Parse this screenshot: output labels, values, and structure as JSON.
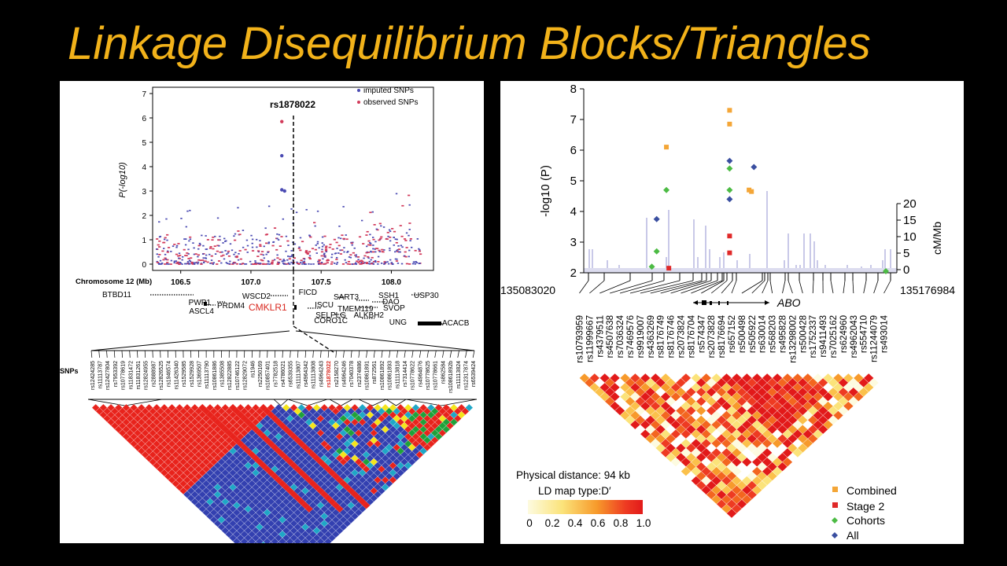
{
  "slide": {
    "title": "Linkage Disequilibrium Blocks/Triangles"
  },
  "colors": {
    "title": "#f2b21a",
    "imputed": "#4b4bb3",
    "observed": "#d23a5a",
    "ld_red": "#e8231c",
    "ld_blue": "#3340b0",
    "ld_teal": "#1fa7c7",
    "ld_green": "#1ea23a",
    "ld_yellow": "#f5e51a",
    "combined": "#f4a637",
    "stage2": "#e02929",
    "cohorts": "#4cbb44",
    "all": "#3a4fa0"
  },
  "left": {
    "ylabel": "P(-log10)",
    "yticks": [
      "0",
      "1",
      "2",
      "3",
      "4",
      "5",
      "6",
      "7"
    ],
    "ylim": [
      0,
      7
    ],
    "xlabel": "Chromosome 12 (Mb)",
    "xticks": [
      "106.5",
      "107.0",
      "107.5",
      "108.0"
    ],
    "xlim": [
      106.3,
      108.3
    ],
    "legend": [
      "imputed SNPs",
      "observed SNPs"
    ],
    "lead_snp": "rs1878022",
    "lead_points": [
      {
        "x": 107.22,
        "y": 5.85,
        "kind": "observed"
      },
      {
        "x": 107.22,
        "y": 4.45,
        "kind": "imputed"
      },
      {
        "x": 107.22,
        "y": 3.05,
        "kind": "imputed"
      },
      {
        "x": 107.24,
        "y": 3.0,
        "kind": "imputed"
      }
    ],
    "genes": [
      "BTBD11",
      "PWP1",
      "PRDM4",
      "ASCL4",
      "WSCD2",
      "CMKLR1",
      "FICD",
      "SART3",
      "ISCU",
      "TMEM119",
      "SELPLG",
      "CORO1C",
      "SSH1",
      "DAO",
      "SVOP",
      "ALKBH2",
      "UNG",
      "USP30",
      "ACACB"
    ],
    "highlight_gene": "CMKLR1",
    "snps_label": "SNPs",
    "snps": [
      "rs12424285",
      "rs11113787",
      "rs12427804",
      "rs7953392",
      "rs10778619",
      "rs11831472",
      "rs11831261",
      "rs12824955",
      "rs2888987",
      "rs12826525",
      "rs1946574",
      "rs11426340",
      "rs1529585",
      "rs1529928",
      "rs1369507",
      "rs11113790",
      "rs10861886",
      "rs1385508",
      "rs12822885",
      "rs10746122",
      "rs12829072",
      "rs1946",
      "rs2250169",
      "rs10857401",
      "rs7782518",
      "rs4786021",
      "rs6539355",
      "rs11113807",
      "rs4964342",
      "rs11113808",
      "rs4964243",
      "rs1878022",
      "rs2158270",
      "rs4964246",
      "rs7040378",
      "rs2374886",
      "rs10861891",
      "rs872561",
      "rs10861892",
      "rs10861893",
      "rs11113818",
      "rs7314414",
      "rs10778622",
      "rs4964876",
      "rs10778625",
      "rs10778661",
      "rs862584",
      "rs10861892b",
      "rs11113824",
      "rs12317874",
      "rs6539424"
    ],
    "highlight_snp": "rs1878022"
  },
  "right": {
    "ylabel": "-log10 (P)",
    "yticks": [
      "2",
      "3",
      "4",
      "5",
      "6",
      "7",
      "8"
    ],
    "ylim": [
      2,
      8
    ],
    "y2label": "cM/Mb",
    "y2ticks": [
      "0",
      "5",
      "10",
      "15",
      "20"
    ],
    "xstart": "135083020",
    "xend": "135176984",
    "gene": "ABO",
    "snps": [
      "rs10793959",
      "rs11999667",
      "rs4379511",
      "rs4507638",
      "rs7036324",
      "rs7469576",
      "rs9919007",
      "rs4363269",
      "rs8176749",
      "rs8176746",
      "rs2073824",
      "rs8176704",
      "rs574347",
      "rs2073828",
      "rs8176694",
      "rs657152",
      "rs500498",
      "rs505922",
      "rs630014",
      "rs568203",
      "rs495828",
      "rs13298002",
      "rs500428",
      "rs1752337",
      "rs9411493",
      "rs7025162",
      "rs624960",
      "rs4962043",
      "rs554710",
      "rs11244079",
      "rs493014"
    ],
    "points": [
      {
        "x": 0.3,
        "y": 7.3,
        "series": "Combined"
      },
      {
        "x": 0.3,
        "y": 6.85,
        "series": "Combined"
      },
      {
        "x": 0.17,
        "y": 6.1,
        "series": "Combined"
      },
      {
        "x": 0.34,
        "y": 4.7,
        "series": "Combined"
      },
      {
        "x": 0.345,
        "y": 4.65,
        "series": "Combined"
      },
      {
        "x": 0.3,
        "y": 3.2,
        "series": "Stage 2"
      },
      {
        "x": 0.3,
        "y": 2.65,
        "series": "Stage 2"
      },
      {
        "x": 0.175,
        "y": 2.15,
        "series": "Stage 2"
      },
      {
        "x": 0.17,
        "y": 4.7,
        "series": "Cohorts"
      },
      {
        "x": 0.3,
        "y": 5.4,
        "series": "Cohorts"
      },
      {
        "x": 0.3,
        "y": 4.7,
        "series": "Cohorts"
      },
      {
        "x": 0.15,
        "y": 2.7,
        "series": "Cohorts"
      },
      {
        "x": 0.14,
        "y": 2.2,
        "series": "Cohorts"
      },
      {
        "x": 0.95,
        "y": 2.05,
        "series": "Cohorts"
      },
      {
        "x": 0.3,
        "y": 5.65,
        "series": "All"
      },
      {
        "x": 0.3,
        "y": 4.4,
        "series": "All"
      },
      {
        "x": 0.15,
        "y": 3.75,
        "series": "All"
      },
      {
        "x": 0.35,
        "y": 5.45,
        "series": "All"
      }
    ],
    "legend": [
      "Combined",
      "Stage 2",
      "Cohorts",
      "All"
    ],
    "distance_label": "Physical distance: 94 kb",
    "ldtype_label": "LD map type:D′",
    "colorbar_ticks": [
      "0",
      "0.2",
      "0.4",
      "0.6",
      "0.8",
      "1.0"
    ]
  }
}
